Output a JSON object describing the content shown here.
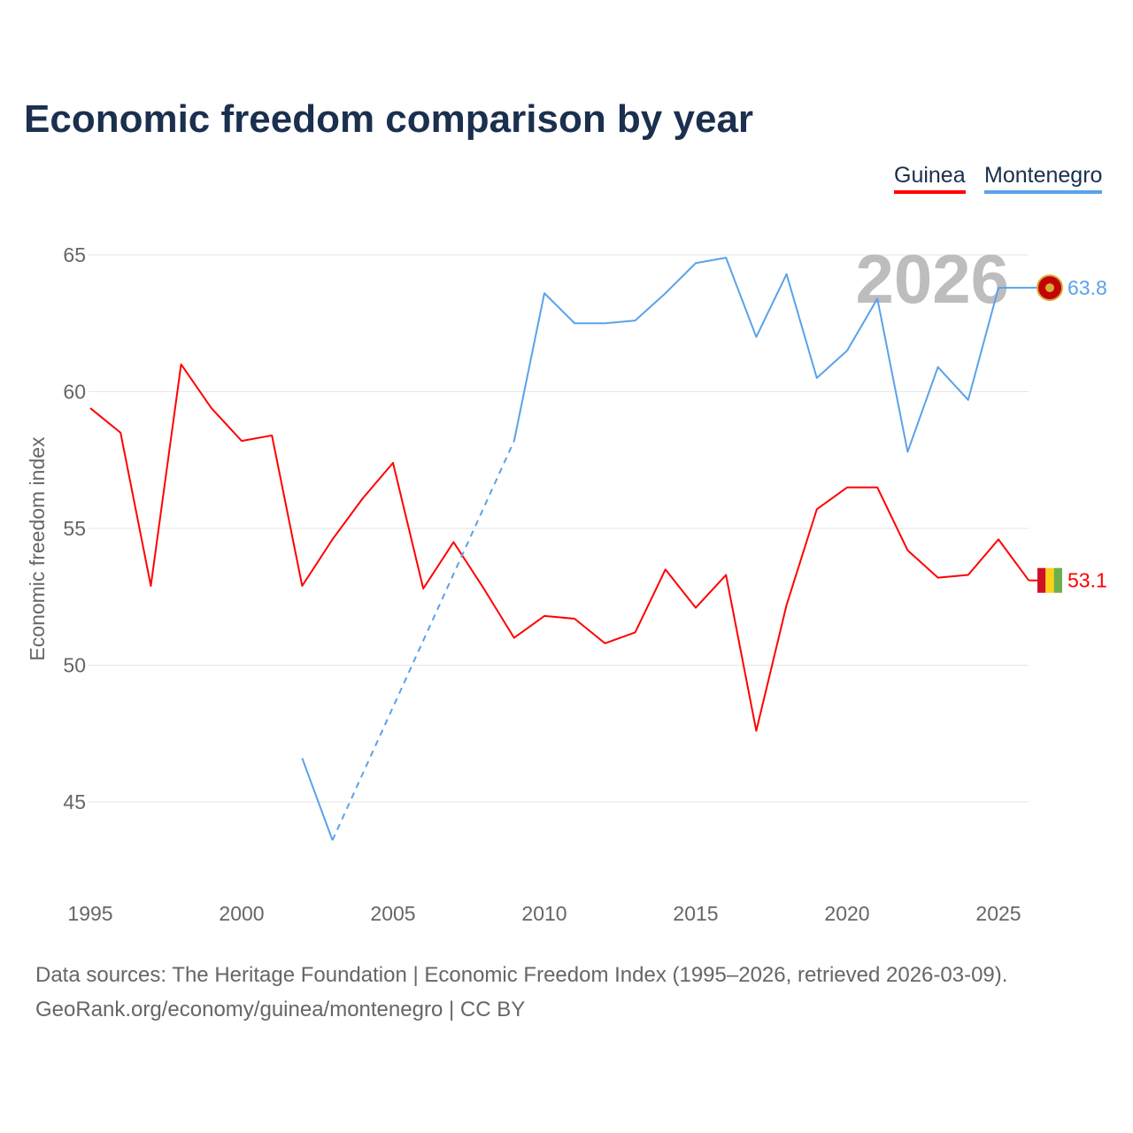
{
  "chart_data": {
    "type": "line",
    "title": "Economic freedom comparison by year",
    "ylabel": "Economic freedom index",
    "xlabel": "",
    "xlim": [
      1995,
      2026
    ],
    "ylim": [
      42,
      67.5
    ],
    "xticks": [
      1995,
      2000,
      2005,
      2010,
      2015,
      2020,
      2025
    ],
    "yticks": [
      45,
      50,
      55,
      60,
      65
    ],
    "grid": true,
    "legend_placement": "top-right",
    "year_watermark": "2026",
    "x": [
      1995,
      1996,
      1997,
      1998,
      1999,
      2000,
      2001,
      2002,
      2003,
      2004,
      2005,
      2006,
      2007,
      2008,
      2009,
      2010,
      2011,
      2012,
      2013,
      2014,
      2015,
      2016,
      2017,
      2018,
      2019,
      2020,
      2021,
      2022,
      2023,
      2024,
      2025,
      2026
    ],
    "series": [
      {
        "name": "Guinea",
        "color": "#ff0000",
        "end_label": "53.1",
        "values": [
          59.4,
          58.5,
          52.9,
          61.0,
          59.4,
          58.2,
          58.4,
          52.9,
          54.6,
          56.1,
          57.4,
          52.8,
          54.5,
          52.8,
          51.0,
          51.8,
          51.7,
          50.8,
          51.2,
          53.5,
          52.1,
          53.3,
          47.6,
          52.2,
          55.7,
          56.5,
          56.5,
          54.2,
          53.2,
          53.3,
          54.6,
          53.1
        ]
      },
      {
        "name": "Montenegro",
        "color": "#5aa2e8",
        "end_label": "63.8",
        "values": [
          null,
          null,
          null,
          null,
          null,
          null,
          null,
          46.6,
          43.6,
          null,
          null,
          null,
          null,
          null,
          58.2,
          63.6,
          62.5,
          62.5,
          62.6,
          63.6,
          64.7,
          64.9,
          62.0,
          64.3,
          60.5,
          61.5,
          63.4,
          57.8,
          60.9,
          59.7,
          63.8,
          63.8
        ]
      }
    ]
  },
  "footer": {
    "line1": "Data sources: The Heritage Foundation | Economic Freedom Index (1995–2026, retrieved 2026-03-09).",
    "line2": "GeoRank.org/economy/guinea/montenegro | CC BY"
  }
}
